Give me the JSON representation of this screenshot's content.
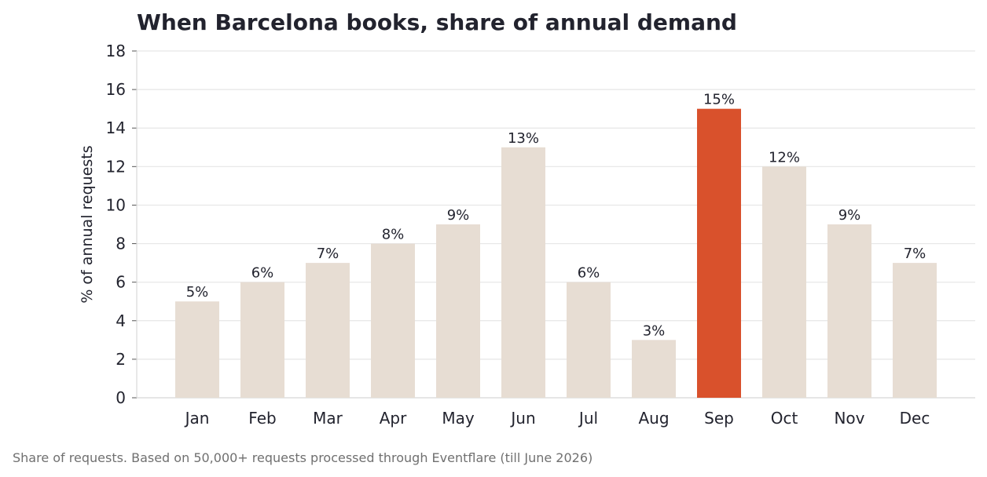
{
  "chart_data": {
    "type": "bar",
    "title": "When Barcelona books, share of annual demand",
    "xlabel": "",
    "ylabel": "% of annual requests",
    "categories": [
      "Jan",
      "Feb",
      "Mar",
      "Apr",
      "May",
      "Jun",
      "Jul",
      "Aug",
      "Sep",
      "Oct",
      "Nov",
      "Dec"
    ],
    "values": [
      5,
      6,
      7,
      8,
      9,
      13,
      6,
      3,
      15,
      12,
      9,
      7
    ],
    "data_labels": [
      "5%",
      "6%",
      "7%",
      "8%",
      "9%",
      "13%",
      "6%",
      "3%",
      "15%",
      "12%",
      "9%",
      "7%"
    ],
    "highlight_category": "Sep",
    "ylim": [
      0,
      18
    ],
    "yticks": [
      0,
      2,
      4,
      6,
      8,
      10,
      12,
      14,
      16,
      18
    ],
    "ytick_labels": [
      "0",
      "2",
      "4",
      "6",
      "8",
      "10",
      "12",
      "14",
      "16",
      "18"
    ],
    "grid": "horizontal",
    "legend": "none",
    "colors": {
      "bar": "#e7ddd3",
      "highlight": "#d9512c",
      "grid": "#e6e6e6",
      "axis": "#d8d8d8",
      "text": "#22232e",
      "footnote": "#707070"
    }
  },
  "footnote": "Share of requests. Based on 50,000+ requests processed through Eventflare (till June 2026)"
}
